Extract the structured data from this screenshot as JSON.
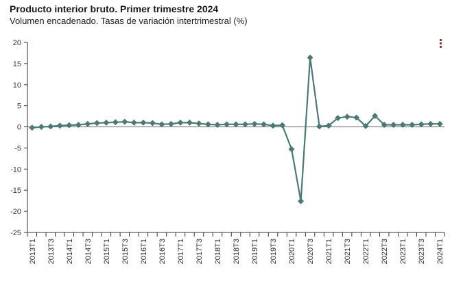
{
  "title": "Producto interior bruto. Primer trimestre 2024",
  "subtitle": "Volumen encadenado. Tasas de variación intertrimestral (%)",
  "menu_icon": "vertical-ellipsis-icon",
  "colors": {
    "line": "#4a7a73",
    "zero_line": "#777777",
    "axis": "#333333",
    "menu": "#8b1c1c"
  },
  "chart_data": {
    "type": "line",
    "grid": false,
    "ylim": [
      -25,
      20
    ],
    "yticks": [
      20,
      15,
      10,
      5,
      0,
      -5,
      -10,
      -15,
      -20,
      -25
    ],
    "x": [
      "2013T1",
      "2013T2",
      "2013T3",
      "2013T4",
      "2014T1",
      "2014T2",
      "2014T3",
      "2014T4",
      "2015T1",
      "2015T2",
      "2015T3",
      "2015T4",
      "2016T1",
      "2016T2",
      "2016T3",
      "2016T4",
      "2017T1",
      "2017T2",
      "2017T3",
      "2017T4",
      "2018T1",
      "2018T2",
      "2018T3",
      "2018T4",
      "2019T1",
      "2019T2",
      "2019T3",
      "2019T4",
      "2020T1",
      "2020T2",
      "2020T3",
      "2020T4",
      "2021T1",
      "2021T2",
      "2021T3",
      "2021T4",
      "2022T1",
      "2022T2",
      "2022T3",
      "2022T4",
      "2023T1",
      "2023T2",
      "2023T3",
      "2023T4",
      "2024T1"
    ],
    "xticks_labeled": [
      "2013T1",
      "2013T3",
      "2014T1",
      "2014T3",
      "2015T1",
      "2015T3",
      "2016T1",
      "2016T3",
      "2017T1",
      "2017T3",
      "2018T1",
      "2018T3",
      "2019T1",
      "2019T3",
      "2020T1",
      "2020T3",
      "2021T1",
      "2021T3",
      "2022T1",
      "2022T3",
      "2023T1",
      "2023T3",
      "2024T1"
    ],
    "series": [
      {
        "values": [
          -0.2,
          0.0,
          0.1,
          0.3,
          0.4,
          0.5,
          0.7,
          0.9,
          1.0,
          1.1,
          1.2,
          1.0,
          1.0,
          0.9,
          0.6,
          0.7,
          1.0,
          1.0,
          0.8,
          0.6,
          0.5,
          0.6,
          0.6,
          0.6,
          0.7,
          0.6,
          0.3,
          0.4,
          -5.3,
          -17.6,
          16.4,
          0.1,
          0.3,
          2.1,
          2.4,
          2.2,
          0.2,
          2.6,
          0.5,
          0.5,
          0.5,
          0.5,
          0.6,
          0.7,
          0.7
        ]
      }
    ]
  }
}
